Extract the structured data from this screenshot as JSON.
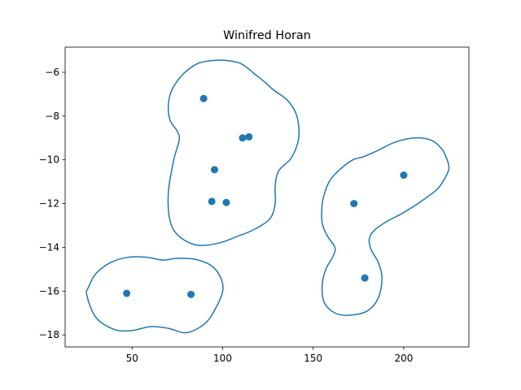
{
  "chart_data": {
    "type": "scatter",
    "title": "Winifred Horan",
    "xlabel": "",
    "ylabel": "",
    "xlim": [
      13,
      236
    ],
    "ylim": [
      -18.55,
      -4.85
    ],
    "xticks": [
      50,
      100,
      150,
      200
    ],
    "yticks": [
      -18,
      -16,
      -14,
      -12,
      -10,
      -8,
      -6
    ],
    "grid": false,
    "colors": {
      "series": "#1f77b4",
      "axes": "#000000",
      "background": "#ffffff"
    },
    "points": [
      {
        "x": 47,
        "y": -16.1
      },
      {
        "x": 82.5,
        "y": -16.15
      },
      {
        "x": 89.5,
        "y": -7.2
      },
      {
        "x": 94,
        "y": -11.9
      },
      {
        "x": 95.5,
        "y": -10.45
      },
      {
        "x": 102,
        "y": -11.95
      },
      {
        "x": 111,
        "y": -9.0
      },
      {
        "x": 114.5,
        "y": -8.95
      },
      {
        "x": 172.5,
        "y": -12.0
      },
      {
        "x": 178.5,
        "y": -15.4
      },
      {
        "x": 200,
        "y": -10.7
      }
    ],
    "contours": [
      [
        [
          25,
          -16.2
        ],
        [
          30,
          -17.2
        ],
        [
          40,
          -17.75
        ],
        [
          50,
          -17.8
        ],
        [
          60,
          -17.62
        ],
        [
          70,
          -17.7
        ],
        [
          80,
          -17.9
        ],
        [
          90,
          -17.5
        ],
        [
          96,
          -16.8
        ],
        [
          100,
          -16.0
        ],
        [
          99,
          -15.4
        ],
        [
          94,
          -14.85
        ],
        [
          85,
          -14.55
        ],
        [
          75,
          -14.5
        ],
        [
          67,
          -14.58
        ],
        [
          58,
          -14.45
        ],
        [
          48,
          -14.45
        ],
        [
          38,
          -14.7
        ],
        [
          30,
          -15.2
        ],
        [
          26,
          -15.8
        ],
        [
          25,
          -16.2
        ]
      ],
      [
        [
          91,
          -5.5
        ],
        [
          85,
          -5.65
        ],
        [
          78,
          -6.1
        ],
        [
          72,
          -6.8
        ],
        [
          70,
          -7.5
        ],
        [
          71,
          -8.2
        ],
        [
          75,
          -8.7
        ],
        [
          76,
          -9.1
        ],
        [
          73,
          -10.0
        ],
        [
          70,
          -11.5
        ],
        [
          71,
          -12.8
        ],
        [
          76,
          -13.5
        ],
        [
          86,
          -13.9
        ],
        [
          98,
          -13.8
        ],
        [
          108,
          -13.5
        ],
        [
          117,
          -13.2
        ],
        [
          126,
          -12.7
        ],
        [
          129,
          -12.0
        ],
        [
          129,
          -11.2
        ],
        [
          131,
          -10.5
        ],
        [
          138,
          -9.9
        ],
        [
          142,
          -9.0
        ],
        [
          141,
          -8.0
        ],
        [
          136,
          -7.3
        ],
        [
          128,
          -6.8
        ],
        [
          124,
          -6.5
        ],
        [
          118,
          -6.1
        ],
        [
          110,
          -5.6
        ],
        [
          100,
          -5.45
        ],
        [
          91,
          -5.5
        ]
      ],
      [
        [
          155,
          -12.0
        ],
        [
          155,
          -12.9
        ],
        [
          158,
          -13.5
        ],
        [
          162,
          -14.0
        ],
        [
          161,
          -14.4
        ],
        [
          157,
          -15.0
        ],
        [
          155,
          -15.7
        ],
        [
          156,
          -16.5
        ],
        [
          162,
          -17.0
        ],
        [
          170,
          -17.1
        ],
        [
          180,
          -16.9
        ],
        [
          186,
          -16.3
        ],
        [
          188,
          -15.4
        ],
        [
          186,
          -14.7
        ],
        [
          182,
          -14.1
        ],
        [
          181,
          -13.6
        ],
        [
          184,
          -13.2
        ],
        [
          191,
          -12.8
        ],
        [
          198,
          -12.5
        ],
        [
          206,
          -12.1
        ],
        [
          213,
          -11.7
        ],
        [
          219,
          -11.3
        ],
        [
          223,
          -10.8
        ],
        [
          225,
          -10.4
        ],
        [
          224,
          -10.0
        ],
        [
          221,
          -9.5
        ],
        [
          215,
          -9.1
        ],
        [
          206,
          -9.0
        ],
        [
          195,
          -9.2
        ],
        [
          185,
          -9.6
        ],
        [
          178,
          -9.85
        ],
        [
          172,
          -10.0
        ],
        [
          166,
          -10.35
        ],
        [
          160,
          -10.85
        ],
        [
          157,
          -11.35
        ],
        [
          155,
          -12.0
        ]
      ]
    ]
  }
}
